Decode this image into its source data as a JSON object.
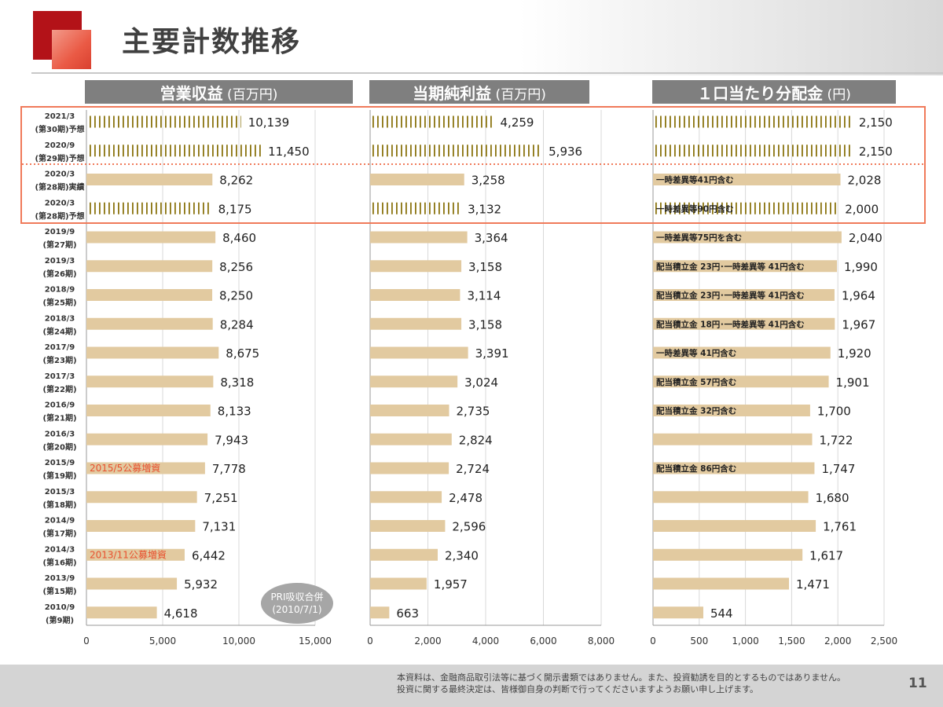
{
  "slide": {
    "title": "主要計数推移",
    "page_number": "11",
    "disclaimer": [
      "本資料は、金融商品取引法等に基づく開示書類ではありません。また、投資勧誘を目的とするものではありません。",
      "投資に関する最終決定は、皆様御自身の判断で行ってくださいますようお願い申し上げます。"
    ],
    "note_bubble": [
      "PRI吸収合併",
      "(2010/7/1)"
    ]
  },
  "periods": [
    [
      "2021/3",
      "(第30期)予想"
    ],
    [
      "2020/9",
      "(第29期)予想"
    ],
    [
      "2020/3",
      "(第28期)実績"
    ],
    [
      "2020/3",
      "(第28期)予想"
    ],
    [
      "2019/9",
      "(第27期)"
    ],
    [
      "2019/3",
      "(第26期)"
    ],
    [
      "2018/9",
      "(第25期)"
    ],
    [
      "2018/3",
      "(第24期)"
    ],
    [
      "2017/9",
      "(第23期)"
    ],
    [
      "2017/3",
      "(第22期)"
    ],
    [
      "2016/9",
      "(第21期)"
    ],
    [
      "2016/3",
      "(第20期)"
    ],
    [
      "2015/9",
      "(第19期)"
    ],
    [
      "2015/3",
      "(第18期)"
    ],
    [
      "2014/9",
      "(第17期)"
    ],
    [
      "2014/3",
      "(第16期)"
    ],
    [
      "2013/9",
      "(第15期)"
    ],
    [
      "2010/9",
      "(第9期)"
    ]
  ],
  "chart_data": [
    {
      "type": "bar",
      "orientation": "horizontal",
      "title": "営業収益",
      "unit": "(百万円)",
      "xlim": [
        0,
        15000
      ],
      "ticks": [
        "0",
        "5,000",
        "10,000",
        "15,000"
      ],
      "tick_values": [
        0,
        5000,
        10000,
        15000
      ],
      "values": [
        10139,
        11450,
        8262,
        8175,
        8460,
        8256,
        8250,
        8284,
        8675,
        8318,
        8133,
        7943,
        7778,
        7251,
        7131,
        6442,
        5932,
        4618
      ],
      "value_labels": [
        "10,139",
        "11,450",
        "8,262",
        "8,175",
        "8,460",
        "8,256",
        "8,250",
        "8,284",
        "8,675",
        "8,318",
        "8,133",
        "7,943",
        "7,778",
        "7,251",
        "7,131",
        "6,442",
        "5,932",
        "4,618"
      ],
      "forecast": [
        true,
        true,
        false,
        true,
        false,
        false,
        false,
        false,
        false,
        false,
        false,
        false,
        false,
        false,
        false,
        false,
        false,
        false
      ],
      "annotations": [
        "",
        "",
        "",
        "",
        "",
        "",
        "",
        "",
        "",
        "",
        "",
        "",
        "2015/5公募増資",
        "",
        "",
        "2013/11公募増資",
        "",
        ""
      ],
      "grid": true
    },
    {
      "type": "bar",
      "orientation": "horizontal",
      "title": "当期純利益",
      "unit": "(百万円)",
      "xlim": [
        0,
        8000
      ],
      "ticks": [
        "0",
        "2,000",
        "4,000",
        "6,000",
        "8,000"
      ],
      "tick_values": [
        0,
        2000,
        4000,
        6000,
        8000
      ],
      "values": [
        4259,
        5936,
        3258,
        3132,
        3364,
        3158,
        3114,
        3158,
        3391,
        3024,
        2735,
        2824,
        2724,
        2478,
        2596,
        2340,
        1957,
        663
      ],
      "value_labels": [
        "4,259",
        "5,936",
        "3,258",
        "3,132",
        "3,364",
        "3,158",
        "3,114",
        "3,158",
        "3,391",
        "3,024",
        "2,735",
        "2,824",
        "2,724",
        "2,478",
        "2,596",
        "2,340",
        "1,957",
        "663"
      ],
      "forecast": [
        true,
        true,
        false,
        true,
        false,
        false,
        false,
        false,
        false,
        false,
        false,
        false,
        false,
        false,
        false,
        false,
        false,
        false
      ],
      "annotations": [
        "",
        "",
        "",
        "",
        "",
        "",
        "",
        "",
        "",
        "",
        "",
        "",
        "",
        "",
        "",
        "",
        "",
        ""
      ],
      "grid": true
    },
    {
      "type": "bar",
      "orientation": "horizontal",
      "title": "１口当たり分配金",
      "unit": "(円)",
      "xlim": [
        0,
        2500
      ],
      "ticks": [
        "0",
        "500",
        "1,000",
        "1,500",
        "2,000",
        "2,500"
      ],
      "tick_values": [
        0,
        500,
        1000,
        1500,
        2000,
        2500
      ],
      "values": [
        2150,
        2150,
        2028,
        2000,
        2040,
        1990,
        1964,
        1967,
        1920,
        1901,
        1700,
        1722,
        1747,
        1680,
        1761,
        1617,
        1471,
        544
      ],
      "value_labels": [
        "2,150",
        "2,150",
        "2,028",
        "2,000",
        "2,040",
        "1,990",
        "1,964",
        "1,967",
        "1,920",
        "1,901",
        "1,700",
        "1,722",
        "1,747",
        "1,680",
        "1,761",
        "1,617",
        "1,471",
        "544"
      ],
      "forecast": [
        true,
        true,
        false,
        true,
        false,
        false,
        false,
        false,
        false,
        false,
        false,
        false,
        false,
        false,
        false,
        false,
        false,
        false
      ],
      "annotations": [
        "",
        "",
        "一時差異等41円含む",
        "一時差異等90円含む",
        "一時差異等75円を含む",
        "配当積立金 23円･一時差異等 41円含む",
        "配当積立金 23円･一時差異等 41円含む",
        "配当積立金 18円･一時差異等 41円含む",
        "一時差異等 41円含む",
        "配当積立金 57円含む",
        "配当積立金 32円含む",
        "",
        "配当積立金 86円含む",
        "",
        "",
        "",
        "",
        ""
      ],
      "grid": true
    }
  ],
  "colors": {
    "bar": "#e2caa0",
    "forecast_stripe": "#8b7410",
    "header_bg": "#7f7f7f",
    "highlight_box": "#f07a5a",
    "annotation_red": "#e8502e",
    "grid": "#d9d9d9",
    "bubble": "#a6a6a6"
  }
}
